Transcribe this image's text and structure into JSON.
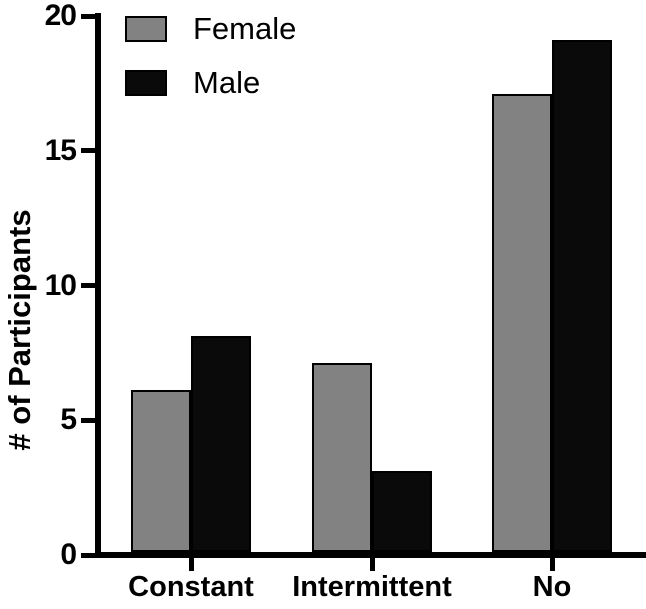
{
  "chart_data": {
    "type": "bar",
    "title": "",
    "categories": [
      "Constant",
      "Intermittent",
      "No"
    ],
    "series": [
      {
        "name": "Female",
        "color": "#828282",
        "values": [
          6,
          7,
          17
        ]
      },
      {
        "name": "Male",
        "color": "#0a0a0a",
        "values": [
          8,
          3,
          19
        ]
      }
    ],
    "xlabel": "",
    "ylabel": "# of Participants",
    "ylim": [
      0,
      20
    ],
    "yticks": [
      0,
      5,
      10,
      15,
      20
    ],
    "grid": false,
    "legend_position": "top-left",
    "axis_color": "#000000",
    "bar_border_color": "#000000",
    "background_color": "#ffffff"
  }
}
